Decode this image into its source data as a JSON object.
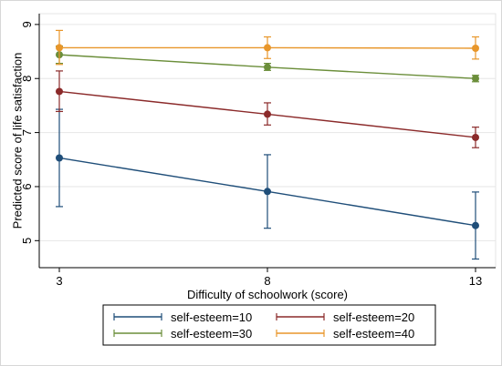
{
  "chart_data": {
    "type": "line",
    "xlabel": "Difficulty of schoolwork (score)",
    "ylabel": "Predicted score of life satisfaction",
    "x": [
      3,
      8,
      13
    ],
    "xlim": [
      3,
      13
    ],
    "ylim": [
      4.5,
      9.2
    ],
    "yticks": [
      5,
      6,
      7,
      8,
      9
    ],
    "grid": true,
    "legend_placement": "bottom",
    "series": [
      {
        "name": "self-esteem=10",
        "color": "#1f4e79",
        "y": [
          6.53,
          5.91,
          5.28
        ],
        "ci_low": [
          5.63,
          5.23,
          4.66
        ],
        "ci_high": [
          7.43,
          6.59,
          5.9
        ]
      },
      {
        "name": "self-esteem=20",
        "color": "#8b2a2a",
        "y": [
          7.76,
          7.34,
          6.91
        ],
        "ci_low": [
          7.39,
          7.14,
          6.72
        ],
        "ci_high": [
          8.14,
          7.55,
          7.1
        ]
      },
      {
        "name": "self-esteem=30",
        "color": "#6b8e3a",
        "y": [
          8.44,
          8.21,
          8.0
        ],
        "ci_low": [
          8.28,
          8.15,
          7.94
        ],
        "ci_high": [
          8.6,
          8.28,
          8.06
        ]
      },
      {
        "name": "self-esteem=40",
        "color": "#e8962a",
        "y": [
          8.57,
          8.57,
          8.56
        ],
        "ci_low": [
          8.26,
          8.37,
          8.36
        ],
        "ci_high": [
          8.89,
          8.77,
          8.77
        ]
      }
    ]
  }
}
